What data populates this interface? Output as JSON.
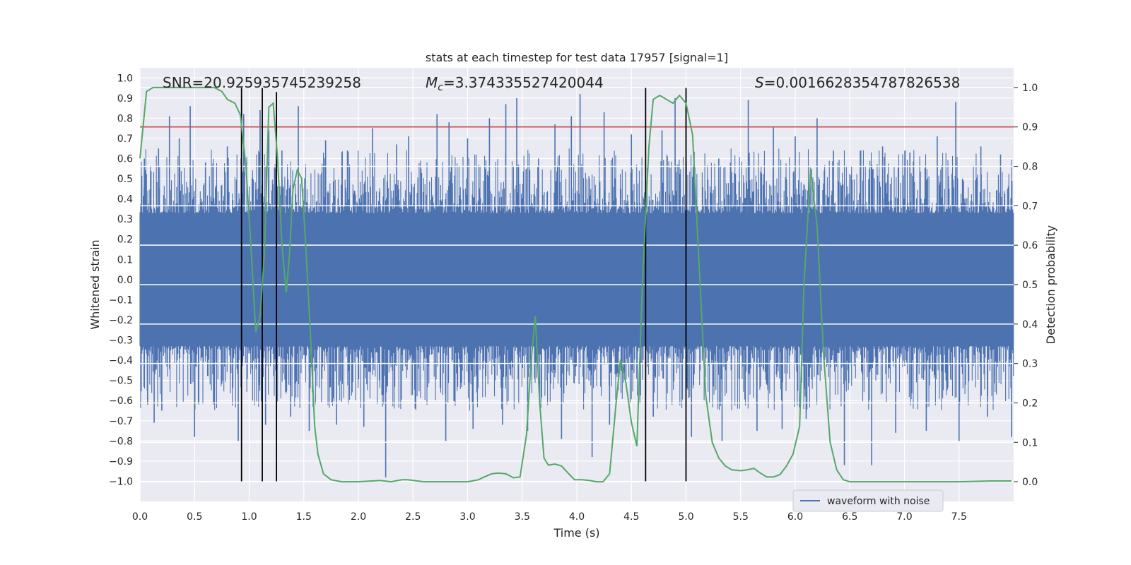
{
  "chart_data": {
    "type": "line",
    "title": "stats at each timestep for test data 17957 [signal=1]",
    "xlabel": "Time (s)",
    "ylabel": "Whitened strain",
    "y2label": "Detection probability",
    "xlim": [
      0.0,
      8.0
    ],
    "ylim": [
      -1.1,
      1.05
    ],
    "y2lim": [
      -0.05,
      1.05
    ],
    "x_ticks": [
      "0.0",
      "0.5",
      "1.0",
      "1.5",
      "2.0",
      "2.5",
      "3.0",
      "3.5",
      "4.0",
      "4.5",
      "5.0",
      "5.5",
      "6.0",
      "6.5",
      "7.0",
      "7.5"
    ],
    "y_ticks": [
      "1.0",
      "0.9",
      "0.8",
      "0.7",
      "0.6",
      "0.5",
      "0.4",
      "0.3",
      "0.2",
      "0.1",
      "0.0",
      "−0.1",
      "−0.2",
      "−0.3",
      "−0.4",
      "−0.5",
      "−0.6",
      "−0.7",
      "−0.8",
      "−0.9",
      "−1.0"
    ],
    "y2_ticks": [
      "1.0",
      "0.9",
      "0.8",
      "0.7",
      "0.6",
      "0.5",
      "0.4",
      "0.3",
      "0.2",
      "0.1",
      "0.0"
    ],
    "annotations": {
      "snr": "SNR=20.925935745239258",
      "mc": "=3.374335527420044",
      "mc_symbol": "M",
      "mc_sub": "c",
      "s": "=0.0016628354787826538",
      "s_symbol": "S"
    },
    "threshold": {
      "y2": 0.9,
      "color": "#c44e52"
    },
    "vertical_lines": [
      {
        "x": 0.93,
        "y_top": 0.95
      },
      {
        "x": 1.12,
        "y_top": 0.95
      },
      {
        "x": 1.25,
        "y_top": 0.93
      },
      {
        "x": 4.63,
        "y_top": 0.95
      },
      {
        "x": 5.0,
        "y_top": 0.95
      }
    ],
    "series": [
      {
        "name": "waveform with noise",
        "color": "#4c72b0",
        "style": "noise-band",
        "core_amplitude": 0.33,
        "spikes": [
          [
            0.04,
            0.6
          ],
          [
            0.17,
            0.65
          ],
          [
            0.27,
            0.81
          ],
          [
            0.36,
            0.7
          ],
          [
            0.46,
            0.86
          ],
          [
            0.6,
            0.58
          ],
          [
            0.8,
            0.66
          ],
          [
            0.95,
            0.82
          ],
          [
            1.1,
            0.84
          ],
          [
            1.18,
            0.74
          ],
          [
            1.3,
            0.64
          ],
          [
            1.45,
            0.86
          ],
          [
            1.7,
            0.69
          ],
          [
            1.9,
            0.64
          ],
          [
            2.13,
            0.75
          ],
          [
            2.35,
            0.67
          ],
          [
            2.46,
            0.71
          ],
          [
            2.72,
            0.82
          ],
          [
            2.83,
            0.78
          ],
          [
            3.0,
            0.7
          ],
          [
            3.2,
            0.8
          ],
          [
            3.35,
            0.87
          ],
          [
            3.45,
            0.9
          ],
          [
            3.65,
            0.6
          ],
          [
            3.8,
            0.77
          ],
          [
            3.95,
            0.81
          ],
          [
            4.03,
            0.92
          ],
          [
            4.25,
            0.83
          ],
          [
            4.5,
            0.72
          ],
          [
            4.78,
            0.74
          ],
          [
            4.9,
            0.9
          ],
          [
            5.0,
            0.86
          ],
          [
            5.3,
            0.6
          ],
          [
            5.57,
            0.89
          ],
          [
            5.8,
            0.76
          ],
          [
            6.0,
            0.71
          ],
          [
            6.2,
            0.8
          ],
          [
            6.35,
            0.64
          ],
          [
            6.6,
            0.64
          ],
          [
            6.8,
            0.66
          ],
          [
            7.05,
            0.63
          ],
          [
            7.3,
            0.71
          ],
          [
            7.47,
            0.88
          ],
          [
            7.7,
            0.66
          ],
          [
            7.88,
            0.62
          ],
          [
            0.07,
            -0.62
          ],
          [
            0.13,
            -0.71
          ],
          [
            0.2,
            -0.65
          ],
          [
            0.5,
            -0.78
          ],
          [
            0.68,
            -0.62
          ],
          [
            0.9,
            -0.8
          ],
          [
            1.15,
            -0.72
          ],
          [
            1.38,
            -0.68
          ],
          [
            1.55,
            -0.75
          ],
          [
            1.8,
            -0.72
          ],
          [
            2.05,
            -0.73
          ],
          [
            2.25,
            -0.98
          ],
          [
            2.52,
            -0.64
          ],
          [
            2.8,
            -0.8
          ],
          [
            3.05,
            -0.74
          ],
          [
            3.32,
            -0.72
          ],
          [
            3.55,
            -0.75
          ],
          [
            3.86,
            -0.79
          ],
          [
            4.14,
            -0.88
          ],
          [
            4.3,
            -0.72
          ],
          [
            4.7,
            -0.68
          ],
          [
            5.05,
            -0.78
          ],
          [
            5.33,
            -0.8
          ],
          [
            5.65,
            -0.75
          ],
          [
            5.88,
            -0.74
          ],
          [
            6.1,
            -0.69
          ],
          [
            6.45,
            -0.92
          ],
          [
            6.7,
            -0.92
          ],
          [
            6.92,
            -0.76
          ],
          [
            7.2,
            -0.75
          ],
          [
            7.5,
            -0.8
          ],
          [
            7.76,
            -0.68
          ],
          [
            7.98,
            -0.78
          ]
        ]
      },
      {
        "name": "",
        "color": "#55a868",
        "axis": "y2",
        "x": [
          0.0,
          0.06,
          0.12,
          0.2,
          0.3,
          0.4,
          0.5,
          0.6,
          0.68,
          0.75,
          0.8,
          0.87,
          0.92,
          0.97,
          1.02,
          1.06,
          1.1,
          1.14,
          1.18,
          1.22,
          1.26,
          1.3,
          1.34,
          1.37,
          1.4,
          1.44,
          1.48,
          1.52,
          1.56,
          1.6,
          1.63,
          1.68,
          1.75,
          1.85,
          2.0,
          2.2,
          2.3,
          2.4,
          2.45,
          2.6,
          2.8,
          3.0,
          3.1,
          3.15,
          3.22,
          3.28,
          3.35,
          3.42,
          3.48,
          3.54,
          3.58,
          3.62,
          3.66,
          3.7,
          3.74,
          3.8,
          3.86,
          3.92,
          3.98,
          4.05,
          4.12,
          4.18,
          4.24,
          4.3,
          4.36,
          4.4,
          4.45,
          4.5,
          4.55,
          4.6,
          4.66,
          4.7,
          4.76,
          4.82,
          4.88,
          4.94,
          5.0,
          5.06,
          5.12,
          5.18,
          5.24,
          5.3,
          5.36,
          5.42,
          5.5,
          5.56,
          5.62,
          5.68,
          5.74,
          5.8,
          5.86,
          5.92,
          5.98,
          6.04,
          6.08,
          6.14,
          6.2,
          6.26,
          6.32,
          6.38,
          6.44,
          6.5,
          6.6,
          6.8,
          7.0,
          7.2,
          7.5,
          7.8,
          7.98
        ],
        "y": [
          0.82,
          0.99,
          1.0,
          1.0,
          1.0,
          1.0,
          1.0,
          1.0,
          1.0,
          0.99,
          0.97,
          0.96,
          0.93,
          0.8,
          0.58,
          0.38,
          0.42,
          0.58,
          0.95,
          0.96,
          0.82,
          0.6,
          0.48,
          0.58,
          0.74,
          0.79,
          0.77,
          0.59,
          0.38,
          0.14,
          0.07,
          0.02,
          0.005,
          0.0,
          0.0,
          0.003,
          0.0,
          0.005,
          0.005,
          0.0,
          0.0,
          0.0,
          0.005,
          0.012,
          0.02,
          0.022,
          0.02,
          0.01,
          0.012,
          0.12,
          0.3,
          0.42,
          0.2,
          0.06,
          0.042,
          0.045,
          0.04,
          0.022,
          0.005,
          0.005,
          0.003,
          0.0,
          0.0,
          0.02,
          0.2,
          0.31,
          0.25,
          0.15,
          0.09,
          0.5,
          0.85,
          0.97,
          0.98,
          0.97,
          0.96,
          0.98,
          0.96,
          0.88,
          0.55,
          0.22,
          0.1,
          0.06,
          0.04,
          0.03,
          0.028,
          0.03,
          0.034,
          0.022,
          0.012,
          0.012,
          0.018,
          0.04,
          0.07,
          0.14,
          0.5,
          0.79,
          0.65,
          0.32,
          0.1,
          0.03,
          0.005,
          0.0,
          0.0,
          0.0,
          0.0,
          0.0,
          0.0,
          0.002,
          0.002
        ]
      }
    ],
    "legend": {
      "position": "lower-right",
      "entries": [
        "waveform with noise"
      ]
    },
    "grid": true
  }
}
